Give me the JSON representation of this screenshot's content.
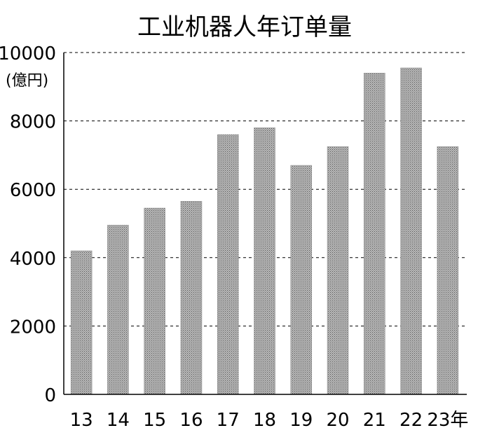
{
  "chart_data": {
    "type": "bar",
    "title": "工业机器人年订单量",
    "y_unit": "(億円)",
    "x_suffix": "年",
    "categories": [
      "13",
      "14",
      "15",
      "16",
      "17",
      "18",
      "19",
      "20",
      "21",
      "22",
      "23"
    ],
    "values": [
      4200,
      4950,
      5450,
      5650,
      7600,
      7800,
      6700,
      7250,
      9400,
      9550,
      7250
    ],
    "ylim": [
      0,
      10000
    ],
    "yticks": [
      "0",
      "2000",
      "4000",
      "6000",
      "8000",
      "10000"
    ],
    "grid": true,
    "bar_color": "#aaaaaa"
  }
}
